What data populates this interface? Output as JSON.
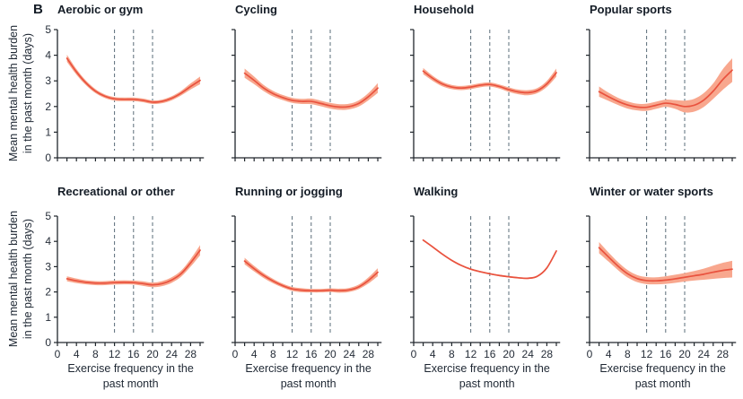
{
  "figure": {
    "panel_label": "B",
    "y_axis_label": {
      "line1": "Mean mental health burden",
      "line2": "in the past month (days)"
    },
    "x_axis_label": {
      "line1": "Exercise frequency in the",
      "line2": "past month"
    }
  },
  "colors": {
    "line": "#e9523e",
    "band": "#f8a78e",
    "vline": "#5a6c78",
    "axis": "#20262c",
    "tick_text": "#252d38",
    "title_text": "#141c26"
  },
  "chart_data": {
    "type": "line",
    "panel_label": "B",
    "xlabel": "Exercise frequency in the past month",
    "ylabel": "Mean mental health burden in the past month (days)",
    "xlim": [
      0,
      30.8
    ],
    "ylim": [
      0,
      5
    ],
    "x_minor_tick_step": 2,
    "x_ticks": [
      0,
      2,
      4,
      6,
      8,
      10,
      12,
      14,
      16,
      18,
      20,
      22,
      24,
      26,
      28,
      30
    ],
    "x_tick_labels": [
      0,
      4,
      8,
      12,
      16,
      20,
      24,
      28
    ],
    "y_ticks": [
      0,
      1,
      2,
      3,
      4,
      5
    ],
    "vlines": [
      12,
      16,
      20
    ],
    "grid": false,
    "x": [
      2,
      4,
      6,
      8,
      10,
      12,
      14,
      16,
      18,
      20,
      22,
      24,
      26,
      28,
      30
    ],
    "panels": [
      {
        "title": "Aerobic or gym",
        "mean": [
          3.88,
          3.35,
          2.92,
          2.6,
          2.4,
          2.3,
          2.28,
          2.28,
          2.24,
          2.17,
          2.2,
          2.32,
          2.52,
          2.78,
          3.02
        ],
        "lower": [
          3.74,
          3.24,
          2.83,
          2.52,
          2.33,
          2.23,
          2.21,
          2.21,
          2.17,
          2.1,
          2.13,
          2.24,
          2.43,
          2.66,
          2.87
        ],
        "upper": [
          4.02,
          3.46,
          3.01,
          2.68,
          2.47,
          2.37,
          2.35,
          2.35,
          2.31,
          2.24,
          2.27,
          2.4,
          2.61,
          2.9,
          3.17
        ]
      },
      {
        "title": "Cycling",
        "mean": [
          3.3,
          3.02,
          2.72,
          2.5,
          2.35,
          2.24,
          2.2,
          2.2,
          2.12,
          2.03,
          1.98,
          2.0,
          2.12,
          2.38,
          2.72
        ],
        "lower": [
          3.12,
          2.87,
          2.6,
          2.39,
          2.25,
          2.14,
          2.1,
          2.09,
          2.01,
          1.92,
          1.87,
          1.89,
          2.0,
          2.24,
          2.53
        ],
        "upper": [
          3.48,
          3.17,
          2.84,
          2.61,
          2.45,
          2.34,
          2.3,
          2.31,
          2.23,
          2.14,
          2.09,
          2.11,
          2.24,
          2.52,
          2.91
        ]
      },
      {
        "title": "Household",
        "mean": [
          3.38,
          3.1,
          2.88,
          2.76,
          2.72,
          2.76,
          2.83,
          2.86,
          2.78,
          2.66,
          2.57,
          2.54,
          2.62,
          2.88,
          3.32
        ],
        "lower": [
          3.26,
          3.0,
          2.79,
          2.68,
          2.64,
          2.68,
          2.75,
          2.78,
          2.7,
          2.57,
          2.48,
          2.44,
          2.52,
          2.76,
          3.16
        ],
        "upper": [
          3.5,
          3.2,
          2.97,
          2.84,
          2.8,
          2.84,
          2.91,
          2.94,
          2.86,
          2.75,
          2.66,
          2.64,
          2.72,
          3.0,
          3.48
        ]
      },
      {
        "title": "Popular sports",
        "mean": [
          2.58,
          2.38,
          2.2,
          2.06,
          1.98,
          1.97,
          2.05,
          2.13,
          2.08,
          2.0,
          2.05,
          2.25,
          2.6,
          3.05,
          3.42
        ],
        "lower": [
          2.38,
          2.22,
          2.06,
          1.92,
          1.85,
          1.83,
          1.91,
          1.99,
          1.91,
          1.77,
          1.8,
          1.98,
          2.3,
          2.65,
          2.96
        ],
        "upper": [
          2.78,
          2.54,
          2.34,
          2.2,
          2.11,
          2.11,
          2.19,
          2.27,
          2.25,
          2.23,
          2.3,
          2.52,
          2.9,
          3.45,
          3.88
        ]
      },
      {
        "title": "Recreational or other",
        "mean": [
          2.52,
          2.44,
          2.38,
          2.35,
          2.35,
          2.37,
          2.38,
          2.37,
          2.33,
          2.28,
          2.33,
          2.47,
          2.72,
          3.15,
          3.65
        ],
        "lower": [
          2.42,
          2.35,
          2.3,
          2.27,
          2.27,
          2.29,
          2.3,
          2.29,
          2.24,
          2.19,
          2.23,
          2.36,
          2.6,
          3.0,
          3.45
        ],
        "upper": [
          2.62,
          2.53,
          2.46,
          2.43,
          2.43,
          2.45,
          2.46,
          2.45,
          2.42,
          2.37,
          2.43,
          2.58,
          2.84,
          3.3,
          3.85
        ]
      },
      {
        "title": "Running or jogging",
        "mean": [
          3.22,
          2.92,
          2.65,
          2.43,
          2.25,
          2.12,
          2.07,
          2.05,
          2.05,
          2.07,
          2.05,
          2.08,
          2.2,
          2.45,
          2.78
        ],
        "lower": [
          3.09,
          2.81,
          2.55,
          2.34,
          2.17,
          2.04,
          1.99,
          1.98,
          1.98,
          2.0,
          1.97,
          2.0,
          2.11,
          2.33,
          2.62
        ],
        "upper": [
          3.35,
          3.03,
          2.75,
          2.52,
          2.33,
          2.2,
          2.15,
          2.12,
          2.12,
          2.14,
          2.13,
          2.16,
          2.29,
          2.57,
          2.94
        ]
      },
      {
        "title": "Walking",
        "mean": [
          4.05,
          3.78,
          3.5,
          3.25,
          3.05,
          2.9,
          2.8,
          2.72,
          2.65,
          2.6,
          2.56,
          2.54,
          2.62,
          2.95,
          3.62
        ],
        "lower": [
          4.02,
          3.75,
          3.47,
          3.22,
          3.02,
          2.87,
          2.77,
          2.69,
          2.62,
          2.57,
          2.53,
          2.51,
          2.59,
          2.92,
          3.59
        ],
        "upper": [
          4.08,
          3.81,
          3.53,
          3.28,
          3.08,
          2.93,
          2.83,
          2.75,
          2.68,
          2.63,
          2.59,
          2.57,
          2.65,
          2.98,
          3.65
        ]
      },
      {
        "title": "Winter or water sports",
        "mean": [
          3.75,
          3.38,
          3.02,
          2.72,
          2.53,
          2.45,
          2.44,
          2.47,
          2.52,
          2.58,
          2.64,
          2.7,
          2.78,
          2.85,
          2.9
        ],
        "lower": [
          3.53,
          3.2,
          2.86,
          2.57,
          2.39,
          2.31,
          2.3,
          2.32,
          2.36,
          2.41,
          2.45,
          2.48,
          2.52,
          2.55,
          2.57
        ],
        "upper": [
          3.97,
          3.56,
          3.18,
          2.87,
          2.67,
          2.59,
          2.58,
          2.62,
          2.68,
          2.75,
          2.83,
          2.92,
          3.04,
          3.15,
          3.23
        ]
      }
    ]
  }
}
